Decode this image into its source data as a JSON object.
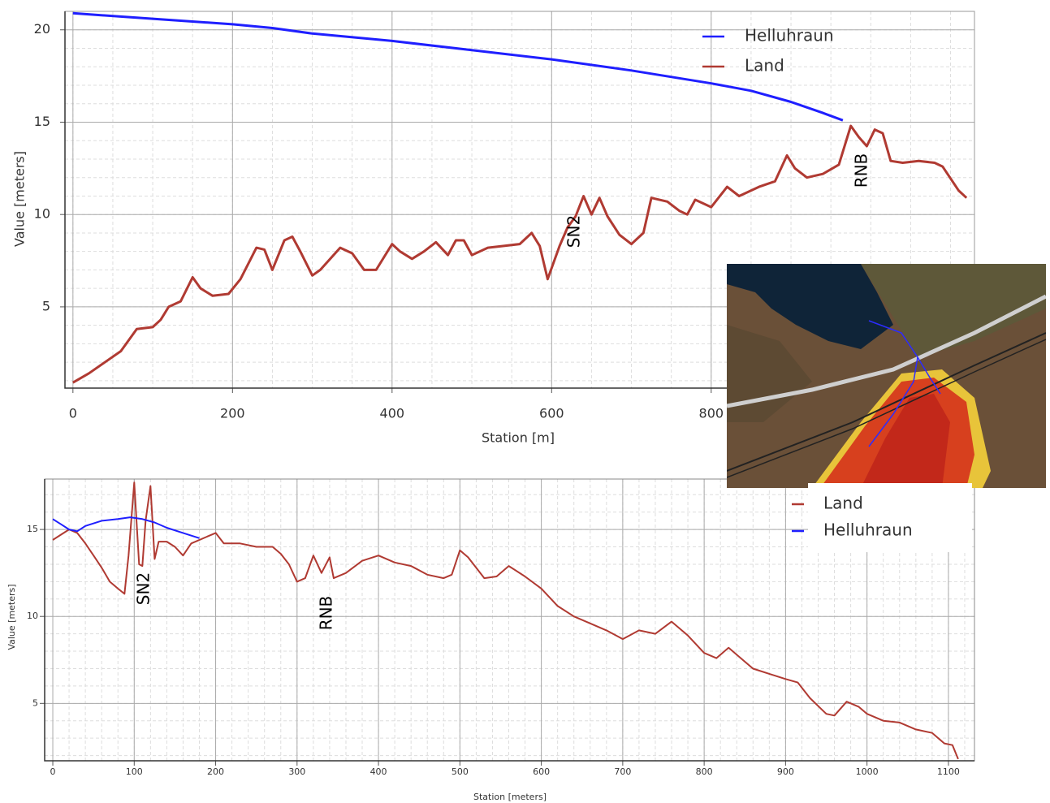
{
  "chart_data": [
    {
      "type": "line",
      "x_label": "Station [m]",
      "y_label": "Value [meters]",
      "xlim": [
        -10,
        1130
      ],
      "ylim": [
        0.6,
        21
      ],
      "xticks": [
        0,
        200,
        400,
        600,
        800
      ],
      "yticks": [
        5,
        10,
        15,
        20
      ],
      "grid": true,
      "minor_grid": true,
      "annotations": [
        "SN2",
        "RNB"
      ],
      "series": [
        {
          "name": "Helluhraun",
          "color": "#1f1fff",
          "x": [
            0,
            100,
            200,
            250,
            300,
            400,
            500,
            600,
            700,
            800,
            850,
            900,
            940,
            965
          ],
          "values": [
            20.9,
            20.6,
            20.3,
            20.1,
            19.8,
            19.4,
            18.9,
            18.4,
            17.8,
            17.1,
            16.7,
            16.1,
            15.5,
            15.1
          ]
        },
        {
          "name": "Land",
          "color": "#b03a32",
          "x": [
            0,
            20,
            40,
            60,
            70,
            80,
            100,
            110,
            120,
            135,
            150,
            160,
            175,
            195,
            210,
            230,
            240,
            250,
            265,
            275,
            285,
            300,
            310,
            335,
            350,
            365,
            380,
            400,
            410,
            425,
            440,
            455,
            470,
            480,
            490,
            500,
            520,
            540,
            560,
            575,
            585,
            595,
            610,
            620,
            630,
            640,
            650,
            660,
            670,
            685,
            700,
            715,
            725,
            745,
            760,
            770,
            780,
            800,
            820,
            835,
            860,
            880,
            895,
            905,
            920,
            940,
            960,
            975,
            985,
            995,
            1005,
            1015,
            1025,
            1040,
            1060,
            1080,
            1090,
            1110,
            1120
          ],
          "values": [
            0.9,
            1.4,
            2.0,
            2.6,
            3.2,
            3.8,
            3.9,
            4.3,
            5.0,
            5.3,
            6.6,
            6.0,
            5.6,
            5.7,
            6.5,
            8.2,
            8.1,
            7.0,
            8.6,
            8.8,
            8.0,
            6.7,
            7.0,
            8.2,
            7.9,
            7.0,
            7.0,
            8.4,
            8.0,
            7.6,
            8.0,
            8.5,
            7.8,
            8.6,
            8.6,
            7.8,
            8.2,
            8.3,
            8.4,
            9.0,
            8.3,
            6.5,
            8.3,
            9.3,
            9.9,
            11.0,
            10.0,
            10.9,
            9.9,
            8.9,
            8.4,
            9.0,
            10.9,
            10.7,
            10.2,
            10.0,
            10.8,
            10.4,
            11.5,
            11.0,
            11.5,
            11.8,
            13.2,
            12.5,
            12.0,
            12.2,
            12.7,
            14.8,
            14.2,
            13.7,
            14.6,
            14.4,
            12.9,
            12.8,
            12.9,
            12.8,
            12.6,
            11.3,
            10.9
          ]
        }
      ]
    },
    {
      "type": "line",
      "x_label": "Station [meters]",
      "y_label": "Value [meters]",
      "xlim": [
        -10,
        1132
      ],
      "ylim": [
        1.7,
        17.9
      ],
      "xticks": [
        0,
        100,
        200,
        300,
        400,
        500,
        600,
        700,
        800,
        900,
        1000,
        1100
      ],
      "yticks": [
        5,
        10,
        15
      ],
      "grid": true,
      "minor_grid": true,
      "annotations": [
        "SN2",
        "RNB"
      ],
      "series": [
        {
          "name": "Land",
          "color": "#b03a32",
          "x": [
            0,
            10,
            20,
            30,
            40,
            50,
            60,
            70,
            80,
            88,
            93,
            100,
            106,
            110,
            114,
            120,
            125,
            130,
            140,
            150,
            160,
            170,
            190,
            200,
            210,
            230,
            250,
            270,
            280,
            290,
            300,
            310,
            320,
            330,
            340,
            345,
            360,
            380,
            400,
            420,
            440,
            460,
            480,
            490,
            500,
            510,
            530,
            545,
            560,
            580,
            600,
            620,
            640,
            660,
            680,
            700,
            720,
            740,
            760,
            780,
            800,
            815,
            830,
            845,
            860,
            880,
            900,
            915,
            930,
            950,
            960,
            975,
            990,
            1000,
            1020,
            1040,
            1060,
            1080,
            1095,
            1105,
            1112
          ],
          "values": [
            14.4,
            14.7,
            15.0,
            14.8,
            14.2,
            13.5,
            12.8,
            12.0,
            11.6,
            11.3,
            13.5,
            17.7,
            13.0,
            12.9,
            15.5,
            17.5,
            13.3,
            14.3,
            14.3,
            14.0,
            13.5,
            14.2,
            14.6,
            14.8,
            14.2,
            14.2,
            14.0,
            14.0,
            13.6,
            13.0,
            12.0,
            12.2,
            13.5,
            12.5,
            13.4,
            12.2,
            12.5,
            13.2,
            13.5,
            13.1,
            12.9,
            12.4,
            12.2,
            12.4,
            13.8,
            13.4,
            12.2,
            12.3,
            12.9,
            12.3,
            11.6,
            10.6,
            10.0,
            9.6,
            9.2,
            8.7,
            9.2,
            9.0,
            9.7,
            8.9,
            7.9,
            7.6,
            8.2,
            7.6,
            7.0,
            6.7,
            6.4,
            6.2,
            5.3,
            4.4,
            4.3,
            5.1,
            4.8,
            4.4,
            4.0,
            3.9,
            3.5,
            3.3,
            2.7,
            2.6,
            1.8
          ]
        },
        {
          "name": "Helluhraun",
          "color": "#1f1fff",
          "x": [
            0,
            10,
            20,
            30,
            40,
            60,
            80,
            95,
            110,
            125,
            140,
            160,
            180
          ],
          "values": [
            15.6,
            15.3,
            15.0,
            14.9,
            15.2,
            15.5,
            15.6,
            15.7,
            15.6,
            15.4,
            15.1,
            14.8,
            14.5
          ]
        }
      ]
    }
  ]
}
